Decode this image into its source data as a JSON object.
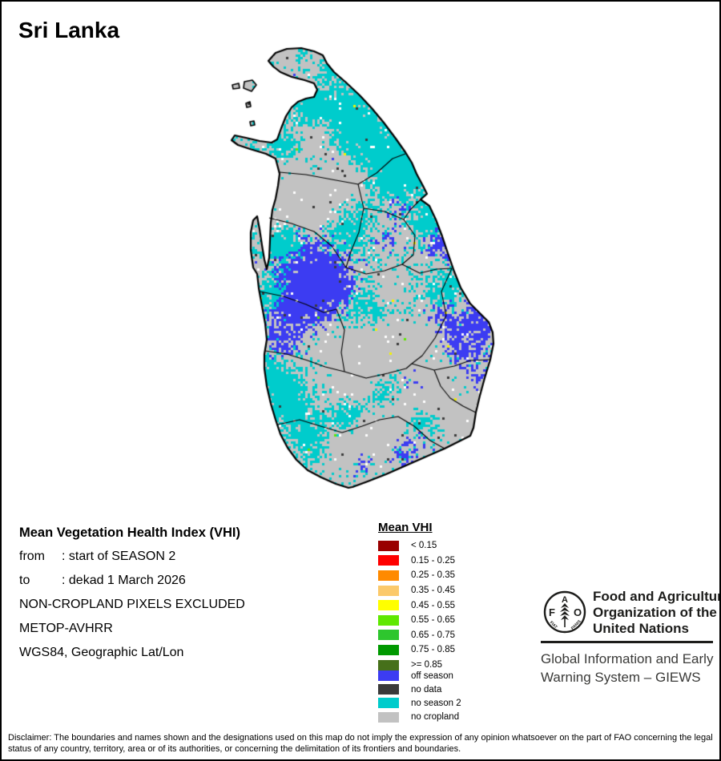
{
  "page": {
    "title": "Sri Lanka",
    "background": "#ffffff",
    "border_color": "#000000"
  },
  "info_block": {
    "heading": "Mean Vegetation Health Index (VHI)",
    "rows": [
      {
        "label": "from",
        "value": ": start of SEASON 2"
      },
      {
        "label": "to",
        "value": ": dekad 1 March 2026"
      }
    ],
    "lines": [
      "NON-CROPLAND PIXELS EXCLUDED",
      "METOP-AVHRR",
      "WGS84, Geographic Lat/Lon"
    ]
  },
  "legend": {
    "title": "Mean VHI",
    "classes": [
      {
        "label": "< 0.15",
        "color": "#990000"
      },
      {
        "label": "0.15 - 0.25",
        "color": "#FF0000"
      },
      {
        "label": "0.25 - 0.35",
        "color": "#FF8A00"
      },
      {
        "label": "0.35 - 0.45",
        "color": "#FBC96A"
      },
      {
        "label": "0.45 - 0.55",
        "color": "#FFFF00"
      },
      {
        "label": "0.55 - 0.65",
        "color": "#5FE800"
      },
      {
        "label": "0.65 - 0.75",
        "color": "#2EC62E"
      },
      {
        "label": "0.75 - 0.85",
        "color": "#009900"
      },
      {
        "label": ">= 0.85",
        "color": "#46701A"
      }
    ],
    "extra_classes": [
      {
        "label": "off season",
        "color": "#3C3CF2"
      },
      {
        "label": "no data",
        "color": "#3A3A3A"
      },
      {
        "label": "no season 2",
        "color": "#00CCCC"
      },
      {
        "label": "no cropland",
        "color": "#C2C2C2"
      }
    ]
  },
  "fao": {
    "org_lines": [
      "Food and Agriculture",
      "Organization of the",
      "United Nations"
    ],
    "giews_lines": [
      "Global Information and Early",
      "Warning System – GIEWS"
    ],
    "logo_letters": {
      "f": "F",
      "a": "A",
      "o": "O"
    },
    "logo_motto": {
      "left": "FIAT",
      "right": "PANIS"
    }
  },
  "disclaimer": "Disclaimer: The boundaries and names shown and the designations used on this map do not imply the expression of any opinion whatsoever on the part of FAO concerning the legal status of any country, territory, area or of its authorities, or concerning the delimitation of its frontiers and boundaries.",
  "map": {
    "seed": 7,
    "cell": 3,
    "colors": {
      "no_cropland": "#C2C2C2",
      "no_season2": "#00CCCC",
      "off_season": "#3C3CF2",
      "no_data": "#3A3A3A",
      "white": "#FFFFFF",
      "speck1": "#F2F200",
      "speck2": "#5FE800",
      "outline": "#000000"
    },
    "coastline": [
      [
        333,
        74
      ],
      [
        342,
        64
      ],
      [
        356,
        59
      ],
      [
        374,
        58
      ],
      [
        390,
        62
      ],
      [
        401,
        67
      ],
      [
        406,
        77
      ],
      [
        415,
        88
      ],
      [
        430,
        101
      ],
      [
        447,
        117
      ],
      [
        462,
        133
      ],
      [
        477,
        151
      ],
      [
        492,
        171
      ],
      [
        504,
        188
      ],
      [
        512,
        201
      ],
      [
        518,
        215
      ],
      [
        526,
        230
      ],
      [
        531,
        240
      ],
      [
        523,
        247
      ],
      [
        534,
        255
      ],
      [
        542,
        272
      ],
      [
        550,
        293
      ],
      [
        557,
        314
      ],
      [
        565,
        337
      ],
      [
        573,
        357
      ],
      [
        585,
        377
      ],
      [
        598,
        390
      ],
      [
        608,
        400
      ],
      [
        613,
        413
      ],
      [
        614,
        427
      ],
      [
        610,
        447
      ],
      [
        603,
        470
      ],
      [
        597,
        492
      ],
      [
        592,
        513
      ],
      [
        589,
        532
      ],
      [
        585,
        542
      ],
      [
        573,
        548
      ],
      [
        553,
        558
      ],
      [
        530,
        568
      ],
      [
        505,
        579
      ],
      [
        480,
        590
      ],
      [
        457,
        599
      ],
      [
        438,
        606
      ],
      [
        433,
        607
      ],
      [
        417,
        602
      ],
      [
        399,
        594
      ],
      [
        382,
        585
      ],
      [
        368,
        572
      ],
      [
        357,
        557
      ],
      [
        348,
        540
      ],
      [
        342,
        522
      ],
      [
        336,
        502
      ],
      [
        331,
        480
      ],
      [
        328,
        458
      ],
      [
        328,
        440
      ],
      [
        331,
        422
      ],
      [
        329,
        402
      ],
      [
        325,
        380
      ],
      [
        321,
        358
      ],
      [
        319,
        340
      ],
      [
        314,
        332
      ],
      [
        311,
        310
      ],
      [
        311,
        288
      ],
      [
        314,
        273
      ],
      [
        319,
        268
      ],
      [
        322,
        284
      ],
      [
        325,
        304
      ],
      [
        328,
        322
      ],
      [
        331,
        334
      ],
      [
        334,
        320
      ],
      [
        335,
        298
      ],
      [
        336,
        276
      ],
      [
        338,
        260
      ],
      [
        342,
        246
      ],
      [
        345,
        230
      ],
      [
        347,
        215
      ],
      [
        342,
        196
      ],
      [
        330,
        190
      ],
      [
        310,
        184
      ],
      [
        295,
        179
      ],
      [
        287,
        173
      ],
      [
        291,
        167
      ],
      [
        305,
        170
      ],
      [
        322,
        174
      ],
      [
        337,
        176
      ],
      [
        344,
        172
      ],
      [
        349,
        158
      ],
      [
        355,
        143
      ],
      [
        362,
        132
      ],
      [
        370,
        125
      ],
      [
        380,
        121
      ],
      [
        390,
        119
      ],
      [
        394,
        110
      ],
      [
        390,
        102
      ],
      [
        378,
        98
      ],
      [
        362,
        94
      ],
      [
        348,
        88
      ],
      [
        339,
        81
      ]
    ],
    "islands": [
      [
        [
          303,
          100
        ],
        [
          313,
          98
        ],
        [
          318,
          104
        ],
        [
          312,
          112
        ],
        [
          302,
          108
        ]
      ],
      [
        [
          288,
          104
        ],
        [
          296,
          102
        ],
        [
          297,
          108
        ],
        [
          289,
          109
        ]
      ],
      [
        [
          305,
          127
        ],
        [
          310,
          125
        ],
        [
          311,
          131
        ],
        [
          306,
          132
        ]
      ],
      [
        [
          310,
          150
        ],
        [
          315,
          149
        ],
        [
          316,
          154
        ],
        [
          311,
          155
        ]
      ]
    ],
    "boundaries": [
      [
        [
          347,
          213
        ],
        [
          380,
          216
        ],
        [
          412,
          222
        ],
        [
          445,
          228
        ],
        [
          468,
          214
        ],
        [
          488,
          196
        ],
        [
          504,
          190
        ]
      ],
      [
        [
          445,
          228
        ],
        [
          452,
          258
        ],
        [
          446,
          288
        ],
        [
          436,
          312
        ],
        [
          430,
          332
        ]
      ],
      [
        [
          452,
          258
        ],
        [
          478,
          262
        ],
        [
          502,
          272
        ],
        [
          516,
          292
        ],
        [
          514,
          316
        ],
        [
          500,
          328
        ]
      ],
      [
        [
          523,
          247
        ],
        [
          510,
          260
        ],
        [
          502,
          272
        ]
      ],
      [
        [
          334,
          270
        ],
        [
          362,
          277
        ],
        [
          390,
          287
        ],
        [
          412,
          305
        ],
        [
          430,
          332
        ]
      ],
      [
        [
          430,
          332
        ],
        [
          455,
          340
        ],
        [
          478,
          336
        ],
        [
          500,
          328
        ],
        [
          522,
          339
        ],
        [
          543,
          334
        ],
        [
          562,
          333
        ]
      ],
      [
        [
          323,
          362
        ],
        [
          352,
          368
        ],
        [
          380,
          378
        ],
        [
          402,
          388
        ],
        [
          418,
          384
        ]
      ],
      [
        [
          418,
          384
        ],
        [
          428,
          410
        ],
        [
          424,
          438
        ],
        [
          428,
          462
        ]
      ],
      [
        [
          562,
          333
        ],
        [
          549,
          362
        ],
        [
          555,
          392
        ],
        [
          541,
          420
        ],
        [
          525,
          442
        ],
        [
          512,
          452
        ]
      ],
      [
        [
          329,
          436
        ],
        [
          356,
          440
        ],
        [
          382,
          448
        ],
        [
          404,
          456
        ],
        [
          428,
          462
        ]
      ],
      [
        [
          428,
          462
        ],
        [
          455,
          470
        ],
        [
          482,
          464
        ],
        [
          505,
          458
        ],
        [
          512,
          452
        ]
      ],
      [
        [
          512,
          452
        ],
        [
          540,
          460
        ],
        [
          565,
          455
        ],
        [
          585,
          448
        ],
        [
          610,
          447
        ]
      ],
      [
        [
          540,
          460
        ],
        [
          548,
          480
        ],
        [
          560,
          495
        ],
        [
          576,
          505
        ],
        [
          592,
          513
        ]
      ],
      [
        [
          345,
          528
        ],
        [
          372,
          522
        ],
        [
          398,
          530
        ],
        [
          425,
          538
        ],
        [
          450,
          530
        ],
        [
          472,
          522
        ],
        [
          495,
          518
        ],
        [
          515,
          530
        ],
        [
          535,
          548
        ],
        [
          553,
          558
        ]
      ]
    ],
    "base_weights": {
      "gray": 0.9,
      "cyan": 0.55,
      "blue": 0.12,
      "jitter": 0.38
    },
    "blue_blobs": [
      [
        385,
        330,
        50,
        1.2
      ],
      [
        362,
        385,
        40,
        1.0
      ],
      [
        415,
        358,
        32,
        0.9
      ],
      [
        345,
        428,
        22,
        0.8
      ],
      [
        560,
        255,
        30,
        1.0
      ],
      [
        588,
        305,
        35,
        1.0
      ],
      [
        600,
        390,
        38,
        1.1
      ],
      [
        573,
        432,
        28,
        0.9
      ],
      [
        540,
        300,
        24,
        0.8
      ],
      [
        495,
        258,
        20,
        0.8
      ],
      [
        515,
        478,
        28,
        0.9
      ],
      [
        505,
        560,
        26,
        0.9
      ],
      [
        448,
        570,
        20,
        0.8
      ],
      [
        420,
        190,
        18,
        0.7
      ],
      [
        360,
        95,
        10,
        0.8
      ],
      [
        335,
        205,
        10,
        0.6
      ],
      [
        595,
        470,
        22,
        0.8
      ],
      [
        475,
        300,
        18,
        0.6
      ],
      [
        432,
        132,
        12,
        0.6
      ],
      [
        545,
        395,
        20,
        0.7
      ]
    ],
    "cyan_blobs": [
      [
        430,
        145,
        45,
        1.0
      ],
      [
        465,
        195,
        40,
        0.9
      ],
      [
        390,
        130,
        22,
        0.9
      ],
      [
        350,
        178,
        16,
        0.9
      ],
      [
        500,
        215,
        28,
        0.9
      ],
      [
        530,
        270,
        26,
        0.9
      ],
      [
        555,
        355,
        22,
        0.8
      ],
      [
        460,
        390,
        32,
        0.8
      ],
      [
        430,
        282,
        32,
        0.8
      ],
      [
        350,
        300,
        24,
        0.9
      ],
      [
        340,
        362,
        22,
        0.9
      ],
      [
        340,
        470,
        26,
        1.0
      ],
      [
        360,
        505,
        28,
        1.0
      ],
      [
        390,
        548,
        26,
        0.9
      ],
      [
        432,
        515,
        22,
        0.7
      ],
      [
        470,
        480,
        28,
        0.8
      ],
      [
        525,
        520,
        22,
        0.8
      ],
      [
        560,
        480,
        18,
        0.7
      ],
      [
        480,
        432,
        20,
        0.6
      ],
      [
        413,
        80,
        14,
        0.8
      ],
      [
        368,
        66,
        10,
        0.7
      ],
      [
        313,
        160,
        8,
        0.8
      ]
    ],
    "gray_blobs": [
      [
        455,
        442,
        38,
        1.0
      ],
      [
        487,
        425,
        28,
        0.8
      ],
      [
        545,
        487,
        32,
        1.0
      ],
      [
        420,
        557,
        22,
        0.8
      ],
      [
        462,
        540,
        22,
        0.8
      ],
      [
        430,
        215,
        28,
        0.9
      ],
      [
        395,
        165,
        22,
        0.8
      ],
      [
        365,
        245,
        28,
        0.9
      ],
      [
        400,
        252,
        22,
        0.7
      ],
      [
        480,
        362,
        18,
        0.6
      ],
      [
        575,
        520,
        18,
        0.7
      ],
      [
        502,
        502,
        18,
        0.6
      ],
      [
        358,
        66,
        10,
        0.7
      ],
      [
        520,
        420,
        18,
        0.6
      ],
      [
        445,
        480,
        20,
        0.6
      ]
    ]
  }
}
